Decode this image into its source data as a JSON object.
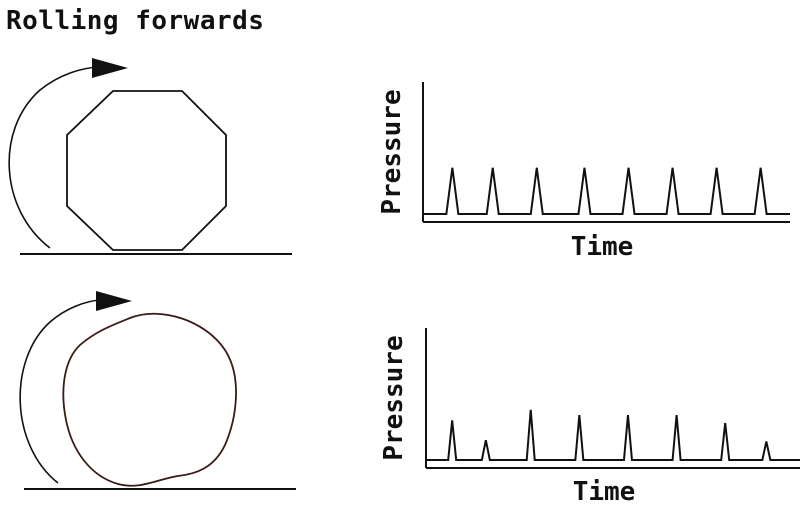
{
  "title": "Rolling forwards",
  "panels": [
    {
      "shape": "octagon",
      "chart_data": {
        "type": "line",
        "xlabel": "Time",
        "ylabel": "Pressure",
        "baseline": 0,
        "spikes": [
          {
            "t": 0.08,
            "h": 0.35
          },
          {
            "t": 0.19,
            "h": 0.35
          },
          {
            "t": 0.31,
            "h": 0.35
          },
          {
            "t": 0.44,
            "h": 0.35
          },
          {
            "t": 0.56,
            "h": 0.35
          },
          {
            "t": 0.68,
            "h": 0.35
          },
          {
            "t": 0.8,
            "h": 0.35
          },
          {
            "t": 0.92,
            "h": 0.35
          }
        ]
      }
    },
    {
      "shape": "irregular-circle",
      "chart_data": {
        "type": "line",
        "xlabel": "Time",
        "ylabel": "Pressure",
        "baseline": 0,
        "spikes": [
          {
            "t": 0.07,
            "h": 0.3
          },
          {
            "t": 0.16,
            "h": 0.15
          },
          {
            "t": 0.28,
            "h": 0.38
          },
          {
            "t": 0.41,
            "h": 0.34
          },
          {
            "t": 0.54,
            "h": 0.34
          },
          {
            "t": 0.67,
            "h": 0.34
          },
          {
            "t": 0.8,
            "h": 0.28
          },
          {
            "t": 0.91,
            "h": 0.14
          }
        ]
      }
    }
  ]
}
